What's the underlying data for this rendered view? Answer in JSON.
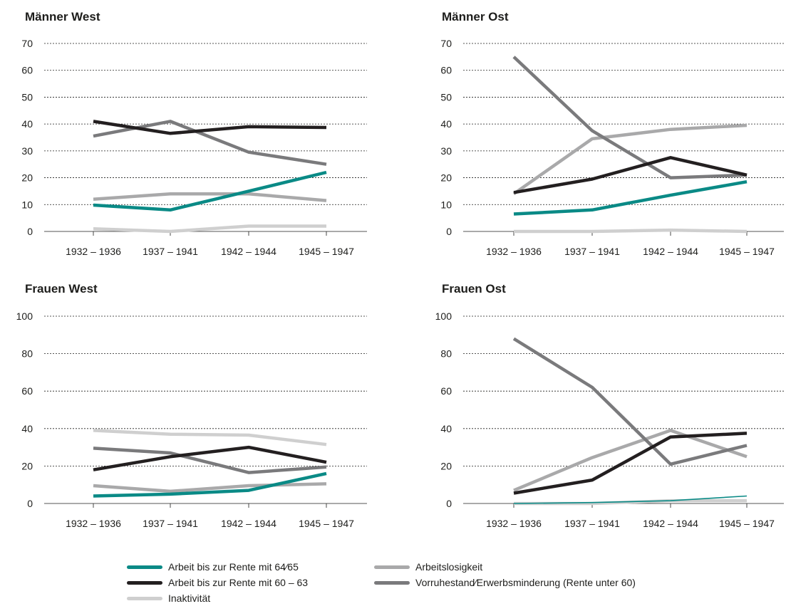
{
  "colors": {
    "work6465": "#0a8a86",
    "work6063": "#231f20",
    "unemployment": "#a9a9aa",
    "earlyRetirement": "#7a7a7c",
    "inactivity": "#cfcfcf"
  },
  "legend": [
    {
      "key": "work6465",
      "label": "Arbeit bis zur Rente mit 64⁄65"
    },
    {
      "key": "unemployment",
      "label": "Arbeitslosigkeit"
    },
    {
      "key": "work6063",
      "label": "Arbeit bis zur Rente mit 60 – 63"
    },
    {
      "key": "earlyRetirement",
      "label": "Vorruhestand⁄Erwerbsminderung (Rente unter 60)"
    },
    {
      "key": "inactivity",
      "label": "Inaktivität"
    }
  ],
  "chart_data": [
    {
      "type": "line",
      "title": "Männer West",
      "categories": [
        "1932 – 1936",
        "1937 – 1941",
        "1942 – 1944",
        "1945 – 1947"
      ],
      "ylim": [
        0,
        70
      ],
      "yticks": [
        0,
        10,
        20,
        30,
        40,
        50,
        60,
        70
      ],
      "grid": true,
      "series": [
        {
          "key": "inactivity",
          "values": [
            1,
            0,
            2,
            2
          ]
        },
        {
          "key": "unemployment",
          "values": [
            12,
            14,
            14,
            11.5
          ]
        },
        {
          "key": "earlyRetirement",
          "values": [
            35.5,
            41,
            29.5,
            25
          ]
        },
        {
          "key": "work6063",
          "values": [
            41,
            36.5,
            39,
            38.7
          ]
        },
        {
          "key": "work6465",
          "values": [
            9.8,
            8,
            15,
            22
          ]
        }
      ]
    },
    {
      "type": "line",
      "title": "Männer Ost",
      "categories": [
        "1932 – 1936",
        "1937 – 1941",
        "1942 – 1944",
        "1945 – 1947"
      ],
      "ylim": [
        0,
        70
      ],
      "yticks": [
        0,
        10,
        20,
        30,
        40,
        50,
        60,
        70
      ],
      "grid": true,
      "series": [
        {
          "key": "inactivity",
          "values": [
            0,
            0,
            0.5,
            0
          ]
        },
        {
          "key": "unemployment",
          "values": [
            14,
            34.5,
            38,
            39.5
          ]
        },
        {
          "key": "earlyRetirement",
          "values": [
            65,
            37.5,
            20,
            21
          ]
        },
        {
          "key": "work6063",
          "values": [
            14.5,
            19.5,
            27.5,
            21
          ]
        },
        {
          "key": "work6465",
          "values": [
            6.5,
            8,
            13.5,
            18.5
          ]
        }
      ]
    },
    {
      "type": "line",
      "title": "Frauen West",
      "categories": [
        "1932 – 1936",
        "1937 – 1941",
        "1942 – 1944",
        "1945 – 1947"
      ],
      "ylim": [
        0,
        100
      ],
      "yticks": [
        0,
        20,
        40,
        60,
        80,
        100
      ],
      "grid": true,
      "series": [
        {
          "key": "inactivity",
          "values": [
            39,
            37,
            36.5,
            31.5
          ]
        },
        {
          "key": "unemployment",
          "values": [
            9.5,
            6.5,
            9.5,
            10.5
          ]
        },
        {
          "key": "earlyRetirement",
          "values": [
            29.5,
            27,
            16.5,
            19.5
          ]
        },
        {
          "key": "work6063",
          "values": [
            18,
            25,
            30,
            22
          ]
        },
        {
          "key": "work6465",
          "values": [
            4,
            5,
            7,
            16
          ]
        }
      ]
    },
    {
      "type": "line",
      "title": "Frauen Ost",
      "categories": [
        "1932 – 1936",
        "1937 – 1941",
        "1942 – 1944",
        "1945 – 1947"
      ],
      "ylim": [
        0,
        100
      ],
      "yticks": [
        0,
        20,
        40,
        60,
        80,
        100
      ],
      "grid": true,
      "series": [
        {
          "key": "inactivity",
          "values": [
            0,
            0,
            1.5,
            1.5
          ]
        },
        {
          "key": "unemployment",
          "values": [
            7,
            24.5,
            39,
            25
          ]
        },
        {
          "key": "earlyRetirement",
          "values": [
            88,
            62,
            21,
            31
          ]
        },
        {
          "key": "work6063",
          "values": [
            5.5,
            12.5,
            35.5,
            37.5
          ]
        },
        {
          "key": "work6465",
          "values": [
            0,
            0.5,
            1.5,
            4
          ],
          "thin": true
        }
      ]
    }
  ]
}
